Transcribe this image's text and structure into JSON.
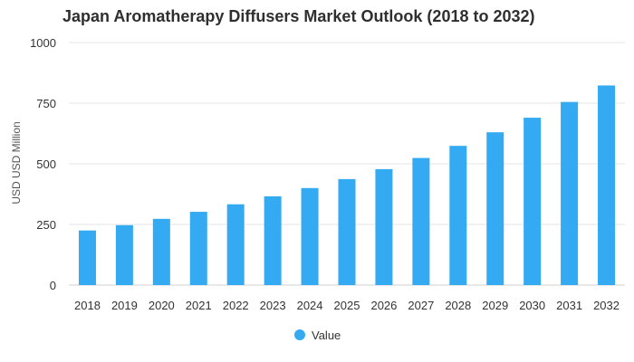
{
  "chart_data": {
    "type": "bar",
    "title": "Japan Aromatherapy Diffusers Market Outlook (2018 to 2032)",
    "xlabel": "",
    "ylabel": "USD USD Million",
    "ylim": [
      0,
      1000
    ],
    "yticks": [
      "0",
      "250",
      "500",
      "750",
      "1000"
    ],
    "categories": [
      "2018",
      "2019",
      "2020",
      "2021",
      "2022",
      "2023",
      "2024",
      "2025",
      "2026",
      "2027",
      "2028",
      "2029",
      "2030",
      "2031",
      "2032"
    ],
    "series": [
      {
        "name": "Value",
        "color": "#33aaf2",
        "values": [
          225,
          247,
          273,
          302,
          333,
          366,
          400,
          437,
          478,
          524,
          574,
          630,
          690,
          755,
          823
        ]
      }
    ],
    "grid": true,
    "legend": "bottom-center"
  }
}
